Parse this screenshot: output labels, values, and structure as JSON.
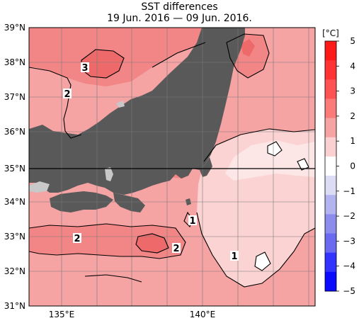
{
  "title": "SST differences",
  "subtitle": "19 Jun. 2016 — 09 Jun. 2016.",
  "lat_labels": [
    "39°N",
    "38°N",
    "37°N",
    "36°N",
    "35°N",
    "34°N",
    "33°N",
    "32°N",
    "31°N"
  ],
  "lon_labels": [
    "135°E",
    "140°E"
  ],
  "colorbar": {
    "unit": "[°C]",
    "ticks": [
      "5",
      "4",
      "3",
      "2",
      "1",
      "0",
      "−1",
      "−2",
      "−3",
      "−4",
      "−5"
    ],
    "colors": [
      "#ff1a1a",
      "#ff3333",
      "#ff5252",
      "#fb7a7a",
      "#f5a3a3",
      "#fbd0d0",
      "#ffffff",
      "#dcdcf5",
      "#b3b3f0",
      "#8c8ced",
      "#6a6af0",
      "#3333ff",
      "#0a0aff"
    ]
  },
  "contour_labels": [
    "3",
    "2",
    "2",
    "2",
    "1",
    "1"
  ],
  "colors": {
    "land": "#595959",
    "lake": "#c8c8c8",
    "ocean_warm": "#f4a6a6",
    "ocean_mild": "#fbd0d0",
    "ocean_hot": "#ef7070"
  }
}
